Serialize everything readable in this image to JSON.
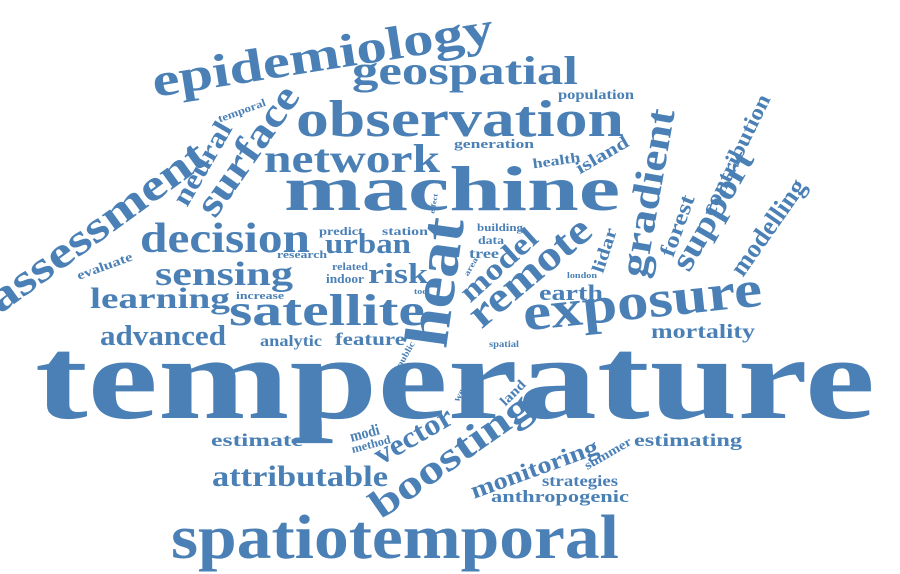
{
  "style": {
    "word_color": "#4a80b5",
    "background": "#ffffff"
  },
  "words": {
    "temperature": "temperature",
    "spatiotemporal": "spatiotemporal",
    "machine": "machine",
    "epidemiology": "epidemiology",
    "geospatial": "geospatial",
    "observation": "observation",
    "assessment": "assessment",
    "network": "network",
    "surface": "surface",
    "neural": "neural",
    "decision": "decision",
    "sensing": "sensing",
    "satellite": "satellite",
    "learning": "learning",
    "advanced": "advanced",
    "heat": "heat",
    "exposure": "exposure",
    "remote": "remote",
    "gradient": "gradient",
    "boosting": "boosting",
    "attributable": "attributable",
    "urban": "urban",
    "risk": "risk",
    "model": "model",
    "earth": "earth",
    "mortality": "mortality",
    "support": "support",
    "modelling": "modelling",
    "contribution": "contribution",
    "forest": "forest",
    "lidar": "lidar",
    "island": "island",
    "health": "health",
    "population": "population",
    "generation": "generation",
    "temporal": "temporal",
    "evaluate": "evaluate",
    "predict": "predict",
    "station": "station",
    "building": "building",
    "data": "data",
    "tree": "tree",
    "research": "research",
    "related": "related",
    "indoor": "indoor",
    "increase": "increase",
    "analytic": "analytic",
    "feature": "feature",
    "public": "public",
    "spatial": "spatial",
    "estimate": "estimate",
    "estimating": "estimating",
    "vector": "vector",
    "modi": "modi",
    "method": "method",
    "land": "land",
    "weather": "weather",
    "monitoring": "monitoring",
    "summer": "summer",
    "strategies": "strategies",
    "anthropogenic": "anthropogenic",
    "london": "london",
    "area": "area",
    "tool": "tool",
    "effect": "effect"
  }
}
